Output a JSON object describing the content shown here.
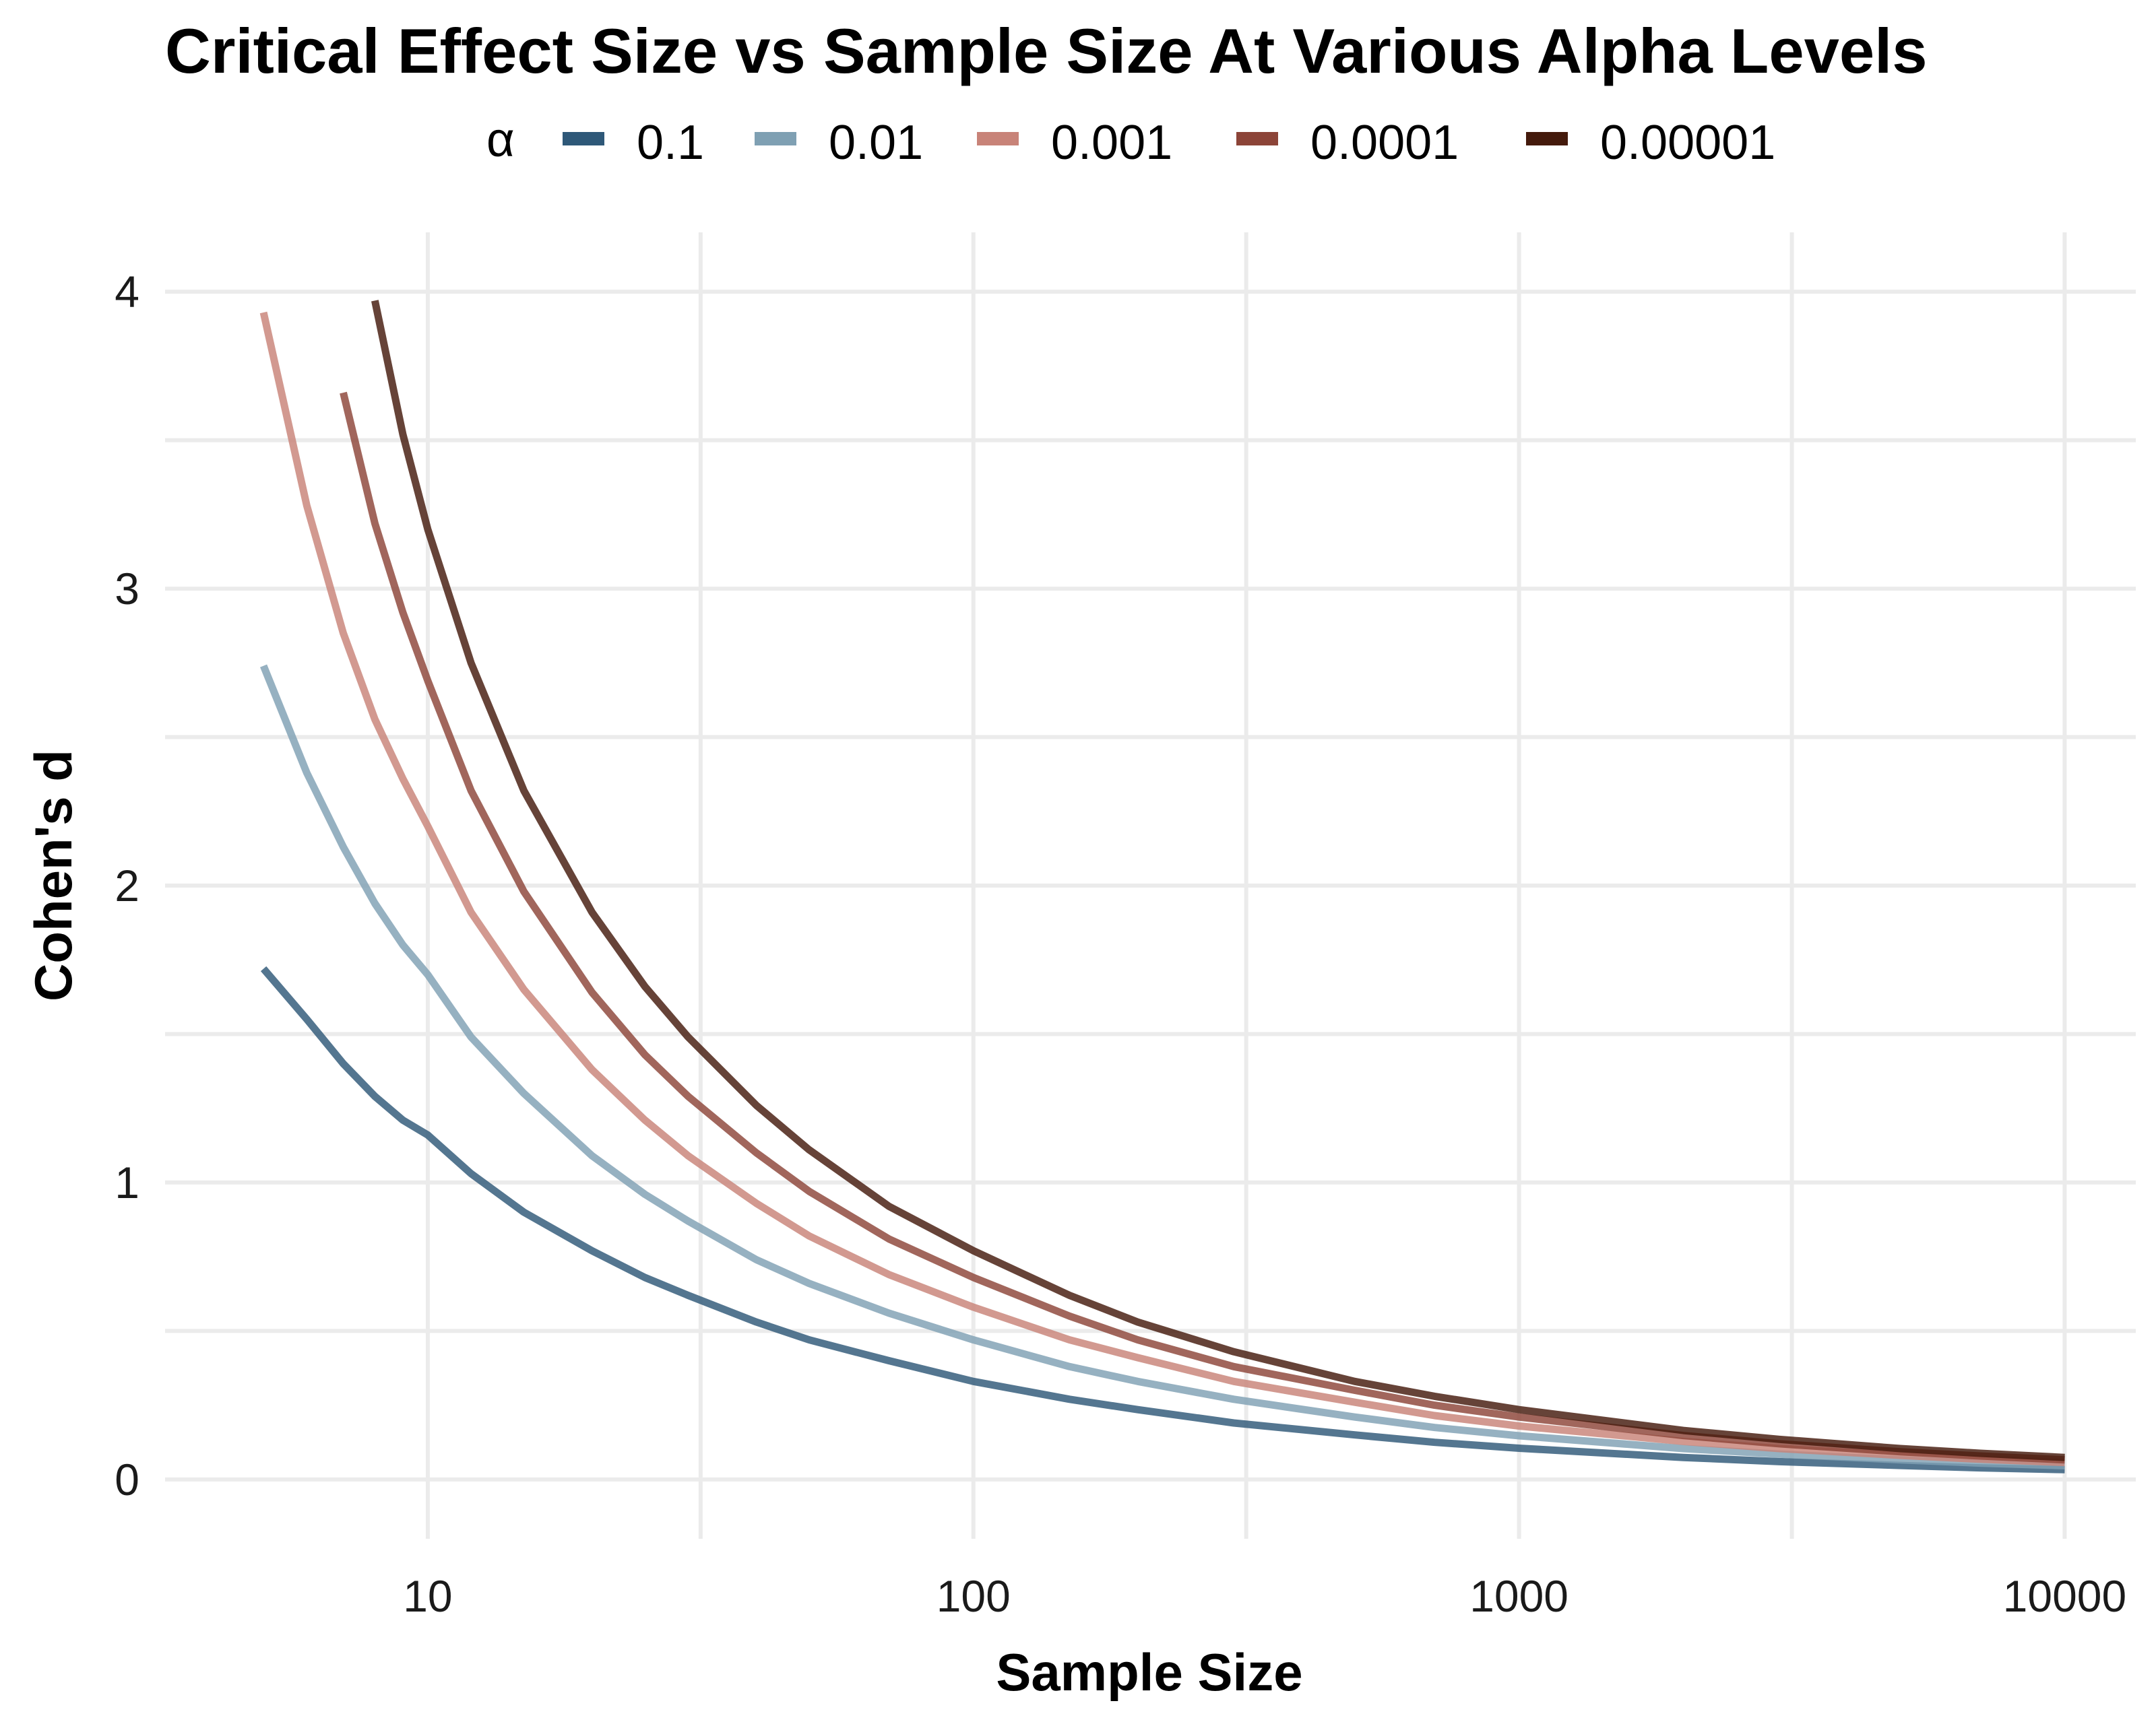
{
  "chart_data": {
    "type": "line",
    "title": "Critical Effect Size vs Sample Size At Various Alpha Levels",
    "xlabel": "Sample Size",
    "ylabel": "Cohen's d",
    "x_scale": "log10",
    "xlim": [
      3.3,
      13500
    ],
    "ylim": [
      -0.2,
      4.2
    ],
    "x_ticks": [
      10,
      100,
      1000,
      10000
    ],
    "x_tick_labels": [
      "10",
      "100",
      "1000",
      "10000"
    ],
    "y_ticks": [
      0,
      1,
      2,
      3,
      4
    ],
    "y_tick_labels": [
      "0",
      "1",
      "2",
      "3",
      "4"
    ],
    "grid": true,
    "legend": {
      "title": "α",
      "position": "top"
    },
    "series": [
      {
        "name": "0.1",
        "color": "#2e5878",
        "x": [
          5,
          6,
          7,
          8,
          9,
          10,
          12,
          15,
          20,
          25,
          30,
          40,
          50,
          70,
          100,
          150,
          200,
          300,
          500,
          700,
          1000,
          2000,
          3000,
          5000,
          7000,
          10000
        ],
        "y": [
          1.72,
          1.55,
          1.4,
          1.29,
          1.21,
          1.16,
          1.03,
          0.9,
          0.77,
          0.68,
          0.62,
          0.53,
          0.47,
          0.4,
          0.33,
          0.27,
          0.235,
          0.19,
          0.15,
          0.125,
          0.105,
          0.074,
          0.06,
          0.047,
          0.039,
          0.033
        ]
      },
      {
        "name": "0.01",
        "color": "#7fa0b3",
        "x": [
          5,
          6,
          7,
          8,
          9,
          10,
          12,
          15,
          20,
          25,
          30,
          40,
          50,
          70,
          100,
          150,
          200,
          300,
          500,
          700,
          1000,
          2000,
          3000,
          5000,
          7000,
          10000
        ],
        "y": [
          2.74,
          2.38,
          2.13,
          1.94,
          1.8,
          1.7,
          1.49,
          1.3,
          1.09,
          0.96,
          0.87,
          0.74,
          0.66,
          0.56,
          0.47,
          0.38,
          0.33,
          0.27,
          0.21,
          0.175,
          0.147,
          0.104,
          0.085,
          0.066,
          0.055,
          0.046
        ]
      },
      {
        "name": "0.001",
        "color": "#c88378",
        "x": [
          5,
          6,
          7,
          8,
          9,
          10,
          12,
          15,
          20,
          25,
          30,
          40,
          50,
          70,
          100,
          150,
          200,
          300,
          500,
          700,
          1000,
          2000,
          3000,
          5000,
          7000,
          10000
        ],
        "y": [
          3.93,
          3.28,
          2.85,
          2.56,
          2.36,
          2.2,
          1.91,
          1.65,
          1.38,
          1.21,
          1.09,
          0.93,
          0.82,
          0.69,
          0.58,
          0.47,
          0.41,
          0.33,
          0.26,
          0.215,
          0.18,
          0.128,
          0.104,
          0.081,
          0.068,
          0.057
        ]
      },
      {
        "name": "0.0001",
        "color": "#8c4438",
        "x": [
          7,
          8,
          9,
          10,
          12,
          15,
          20,
          25,
          30,
          40,
          50,
          70,
          100,
          150,
          200,
          300,
          500,
          700,
          1000,
          2000,
          3000,
          5000,
          7000,
          10000
        ],
        "y": [
          3.66,
          3.22,
          2.92,
          2.69,
          2.32,
          1.98,
          1.64,
          1.43,
          1.29,
          1.1,
          0.97,
          0.81,
          0.68,
          0.55,
          0.47,
          0.38,
          0.3,
          0.25,
          0.21,
          0.148,
          0.12,
          0.093,
          0.079,
          0.066
        ]
      },
      {
        "name": "0.00001",
        "color": "#441a0c",
        "x": [
          8,
          9,
          10,
          12,
          15,
          20,
          25,
          30,
          40,
          50,
          70,
          100,
          150,
          200,
          300,
          500,
          700,
          1000,
          2000,
          3000,
          5000,
          7000,
          10000
        ],
        "y": [
          3.97,
          3.52,
          3.2,
          2.75,
          2.32,
          1.91,
          1.66,
          1.49,
          1.26,
          1.11,
          0.92,
          0.77,
          0.62,
          0.53,
          0.43,
          0.33,
          0.28,
          0.235,
          0.165,
          0.135,
          0.104,
          0.088,
          0.074
        ]
      }
    ]
  }
}
